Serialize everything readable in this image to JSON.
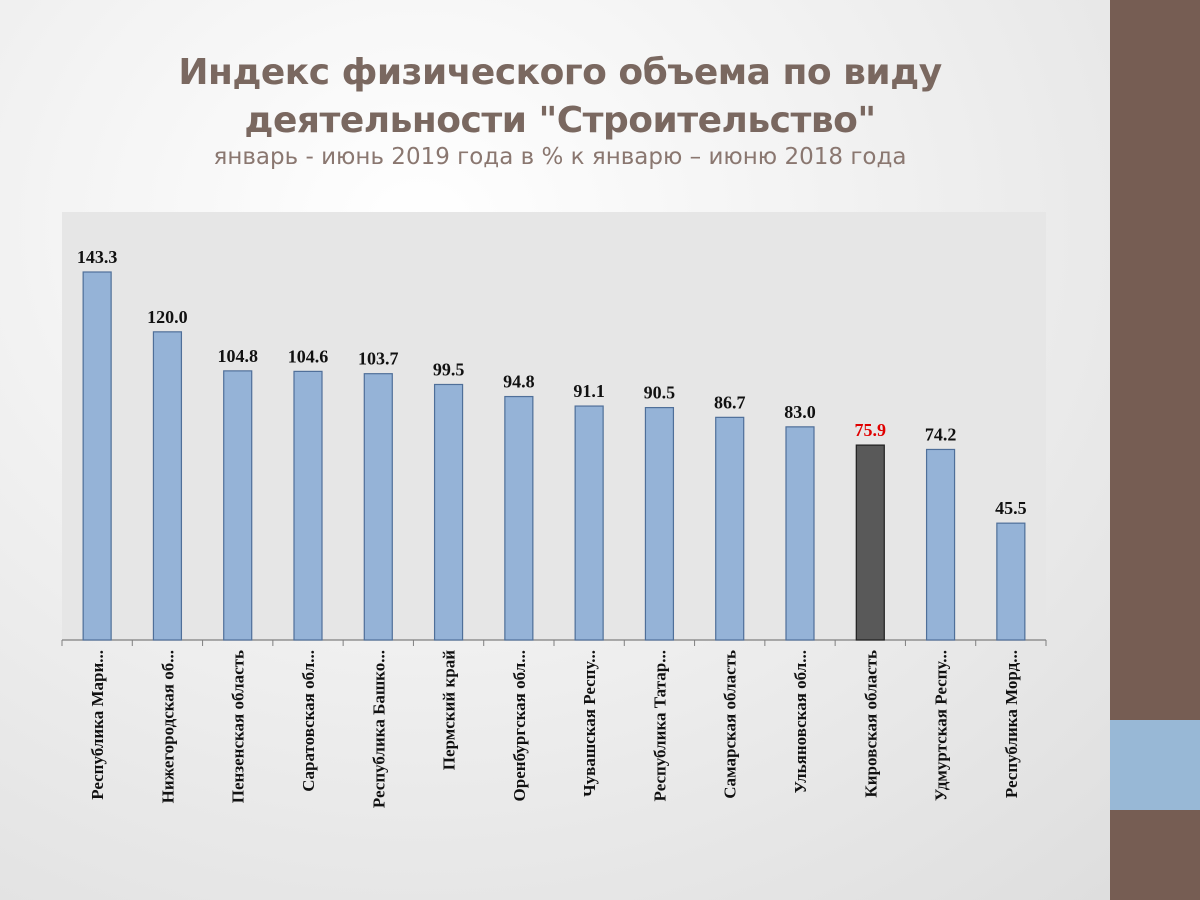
{
  "title_line1": "Индекс физического объема по виду",
  "title_line2": "деятельности \"Строительство\"",
  "subtitle": "январь - июнь 2019 года в % к январю – июню 2018 года",
  "colors": {
    "bar": "#95b3d7",
    "bar_highlight": "#595959",
    "label_highlight": "#e00000",
    "side_bar": "#765d53",
    "side_accent": "#98b8d6"
  },
  "chart_data": {
    "type": "bar",
    "title": "Индекс физического объема по виду деятельности \"Строительство\"",
    "subtitle": "январь - июнь 2019 года в % к январю – июню 2018 года",
    "categories": [
      "Республика  Мари...",
      "Нижегородская об...",
      "Пензенская область",
      "Саратовская обл...",
      "Республика Башко...",
      "Пермский край",
      "Оренбургская обл...",
      "Чувашская Респу...",
      "Республика  Татар...",
      "Самарская область",
      "Ульяновская обл...",
      "Кировская область",
      "Удмуртская Респу...",
      "Республика Морд..."
    ],
    "values": [
      143.3,
      120.0,
      104.8,
      104.6,
      103.7,
      99.5,
      94.8,
      91.1,
      90.5,
      86.7,
      83.0,
      75.9,
      74.2,
      45.5
    ],
    "data_labels": [
      "143.3",
      "120.0",
      "104.8",
      "104.6",
      "103.7",
      "99.5",
      "94.8",
      "91.1",
      "90.5",
      "86.7",
      "83.0",
      "75.9",
      "74.2",
      "45.5"
    ],
    "highlight_index": 11,
    "ylim": [
      0,
      155
    ],
    "xlabel": "",
    "ylabel": "",
    "grid": false,
    "legend": false
  }
}
